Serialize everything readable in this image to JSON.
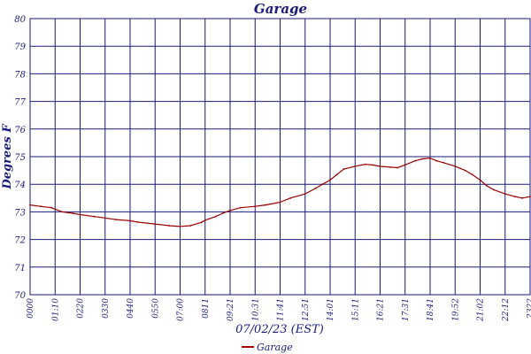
{
  "chart_data": {
    "type": "line",
    "title": "Garage",
    "xlabel": "07/02/23 (EST)",
    "ylabel": "Degrees F",
    "ylim": [
      70,
      80
    ],
    "grid": true,
    "legend_position": "bottom-center",
    "colors": {
      "title": "#1a1a7a",
      "axis_text": "#1a1a7a",
      "grid": "#1a1a7a",
      "line": "#9b0000",
      "background": "#ffffff"
    },
    "y_ticks": [
      "70",
      "71",
      "72",
      "73",
      "74",
      "75",
      "76",
      "77",
      "78",
      "79",
      "80"
    ],
    "x_ticks": [
      "0000",
      "01:10",
      "0220",
      "0330",
      "0440",
      "0550",
      "07:00",
      "0811",
      "09:21",
      "10:31",
      "11:41",
      "12:51",
      "14:01",
      "15:11",
      "16:21",
      "17:31",
      "18:41",
      "19:52",
      "21:02",
      "22:12",
      "2322"
    ],
    "series": [
      {
        "name": "Garage",
        "x": [
          "00:00",
          "00:30",
          "01:00",
          "01:10",
          "01:30",
          "02:00",
          "02:20",
          "03:00",
          "03:30",
          "04:00",
          "04:40",
          "05:00",
          "05:50",
          "06:30",
          "07:00",
          "07:30",
          "08:00",
          "08:11",
          "08:40",
          "09:00",
          "09:21",
          "09:50",
          "10:31",
          "11:00",
          "11:41",
          "12:10",
          "12:51",
          "13:20",
          "13:40",
          "14:01",
          "14:20",
          "14:40",
          "15:11",
          "15:40",
          "16:00",
          "16:21",
          "16:50",
          "17:10",
          "17:31",
          "18:00",
          "18:20",
          "18:41",
          "19:00",
          "19:20",
          "19:52",
          "20:20",
          "20:40",
          "21:02",
          "21:20",
          "21:40",
          "22:12",
          "22:40",
          "23:00",
          "23:22"
        ],
        "values": [
          73.25,
          73.2,
          73.15,
          73.1,
          73.0,
          72.95,
          72.9,
          72.83,
          72.78,
          72.72,
          72.68,
          72.63,
          72.56,
          72.5,
          72.47,
          72.5,
          72.62,
          72.7,
          72.83,
          72.95,
          73.05,
          73.15,
          73.2,
          73.25,
          73.35,
          73.5,
          73.65,
          73.85,
          74.0,
          74.15,
          74.35,
          74.55,
          74.65,
          74.72,
          74.7,
          74.65,
          74.62,
          74.6,
          74.7,
          74.85,
          74.92,
          74.95,
          74.85,
          74.78,
          74.65,
          74.5,
          74.35,
          74.15,
          73.95,
          73.8,
          73.65,
          73.55,
          73.5,
          73.55
        ]
      }
    ]
  }
}
